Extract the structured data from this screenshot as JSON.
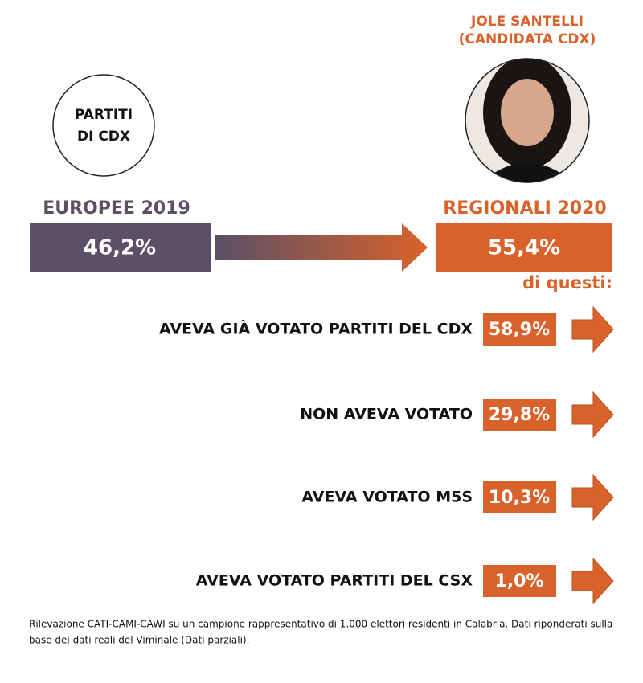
{
  "candidate": {
    "name": "JOLE SANTELLI",
    "role": "(CANDIDATA CDX)"
  },
  "left": {
    "circle_lines": [
      "PARTITI",
      "DI CDX"
    ],
    "heading": "EUROPEE 2019",
    "value": "46,2%"
  },
  "right": {
    "heading": "REGIONALI 2020",
    "value": "55,4%",
    "note": "di questi:"
  },
  "rows": [
    {
      "label": "AVEVA GIÀ VOTATO PARTITI DEL CDX",
      "value": "58,9%"
    },
    {
      "label": "NON AVEVA VOTATO",
      "value": "29,8%"
    },
    {
      "label": "AVEVA VOTATO M5S",
      "value": "10,3%"
    },
    {
      "label": "AVEVA VOTATO PARTITI DEL CSX",
      "value": "1,0%"
    }
  ],
  "footnote": [
    "Rilevazione CATI-CAMI-CAWI su un campione rappresentativo di 1.000 elettori residenti in Calabria. Dati riponderati sulla",
    "base dei dati reali del Viminale (Dati parziali)."
  ]
}
